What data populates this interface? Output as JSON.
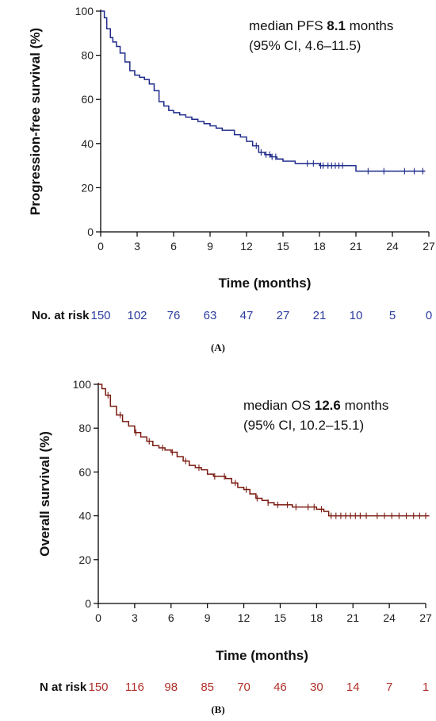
{
  "chart_data": [
    {
      "type": "line",
      "panel_label": "(A)",
      "ylabel": "Progression-free survival (%)",
      "xlabel": "Time (months)",
      "xlim": [
        0,
        27
      ],
      "ylim": [
        0,
        100
      ],
      "xticks": [
        0,
        3,
        6,
        9,
        12,
        15,
        18,
        21,
        24,
        27
      ],
      "yticks": [
        0,
        20,
        40,
        60,
        80,
        100
      ],
      "color": "#1f2a8a",
      "annotation": {
        "line1_prefix": "median PFS ",
        "line1_value": "8.1",
        "line1_suffix": " months",
        "line2": "(95% CI, 4.6–11.5)"
      },
      "risk_table": {
        "label": "No. at risk",
        "color": "#2a3aa0",
        "values": [
          "150",
          "102",
          "76",
          "63",
          "47",
          "27",
          "21",
          "10",
          "5",
          "0"
        ]
      },
      "series": [
        {
          "x": [
            0,
            0.3,
            0.5,
            0.8,
            1.0,
            1.3,
            1.6,
            2.0,
            2.4,
            2.8,
            3.2,
            3.6,
            4.0,
            4.4,
            4.8,
            5.2,
            5.6,
            6.0,
            6.5,
            7.0,
            7.5,
            8.0,
            8.5,
            9.0,
            9.5,
            10.0,
            10.5,
            11.0,
            11.5,
            12.0,
            12.5,
            13.0,
            13.5,
            14.0,
            14.5,
            15.0,
            16.0,
            18.0,
            20.0,
            21.0,
            26.7
          ],
          "y": [
            100,
            97,
            92,
            88,
            86,
            84,
            81,
            77,
            73,
            71,
            70,
            69,
            67,
            64,
            59,
            57,
            55,
            54,
            53,
            52,
            51,
            50,
            49,
            48,
            47,
            46,
            46,
            44,
            43,
            41,
            39,
            36,
            35,
            34,
            33,
            32,
            31,
            30,
            30,
            27.5,
            27.5
          ]
        }
      ],
      "censor_x": [
        12.8,
        13.2,
        13.6,
        13.9,
        14.1,
        14.4,
        17.0,
        17.5,
        18.1,
        18.3,
        18.7,
        19.0,
        19.3,
        19.6,
        19.9,
        22.0,
        23.3,
        25.0,
        25.8,
        26.5
      ]
    },
    {
      "type": "line",
      "panel_label": "(B)",
      "ylabel": "Overall survival (%)",
      "xlabel": "Time (months)",
      "xlim": [
        0,
        27
      ],
      "ylim": [
        0,
        100
      ],
      "xticks": [
        0,
        3,
        6,
        9,
        12,
        15,
        18,
        21,
        24,
        27
      ],
      "yticks": [
        0,
        20,
        40,
        60,
        80,
        100
      ],
      "color": "#7a1a10",
      "annotation": {
        "line1_prefix": "median OS ",
        "line1_value": "12.6",
        "line1_suffix": " months",
        "line2": "(95% CI, 10.2–15.1)"
      },
      "risk_table": {
        "label": "N at risk",
        "color": "#b0302a",
        "values": [
          "150",
          "116",
          "98",
          "85",
          "70",
          "46",
          "30",
          "14",
          "7",
          "1"
        ]
      },
      "series": [
        {
          "x": [
            0,
            0.3,
            0.6,
            1.0,
            1.5,
            2.0,
            2.5,
            3.0,
            3.5,
            4.0,
            4.5,
            5.0,
            5.5,
            6.0,
            6.5,
            7.0,
            7.5,
            8.0,
            8.5,
            9.0,
            9.5,
            10.0,
            10.5,
            11.0,
            11.5,
            12.0,
            12.5,
            13.0,
            13.5,
            14.0,
            14.5,
            15.0,
            16.0,
            17.0,
            18.0,
            18.6,
            19.0,
            27.3
          ],
          "y": [
            100,
            98,
            95,
            90,
            86,
            83,
            81,
            78,
            76,
            74,
            72,
            71,
            70,
            69,
            67,
            65,
            63,
            62,
            61,
            59,
            58,
            58,
            57,
            55,
            53,
            52,
            50,
            48,
            47,
            46,
            45,
            45,
            44,
            44,
            43,
            42,
            40,
            40
          ]
        }
      ],
      "censor_x": [
        0.8,
        1.8,
        3.1,
        4.2,
        5.3,
        6.1,
        7.2,
        8.3,
        9.6,
        10.4,
        11.3,
        12.2,
        13.1,
        14.0,
        14.8,
        15.6,
        16.3,
        17.3,
        17.8,
        18.4,
        19.2,
        19.6,
        20.0,
        20.4,
        20.8,
        21.2,
        21.6,
        22.1,
        23.0,
        23.6,
        24.2,
        24.8,
        25.4,
        26.0,
        26.5,
        27.0
      ]
    }
  ]
}
